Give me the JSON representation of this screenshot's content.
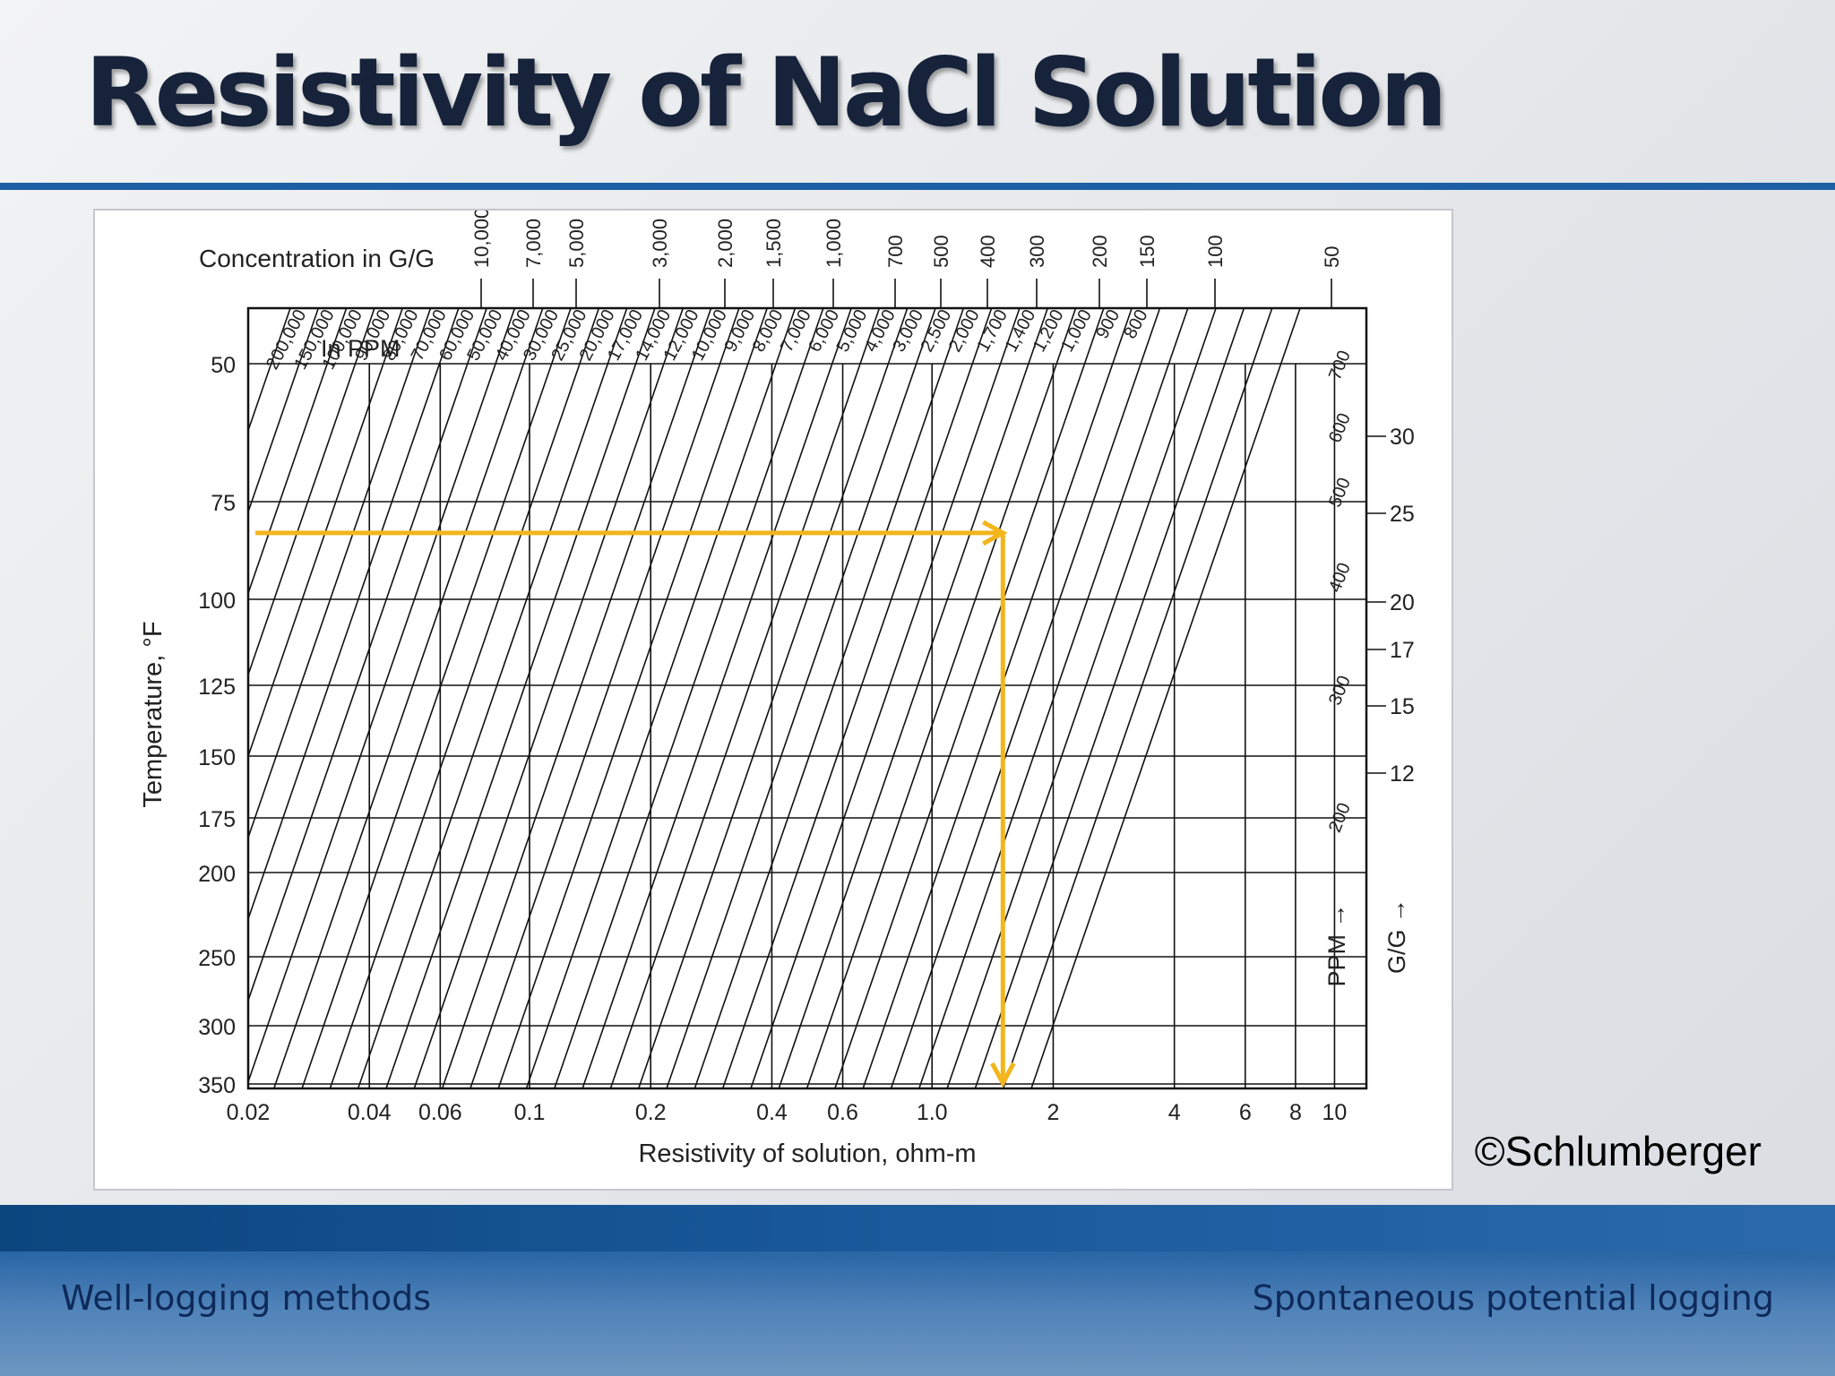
{
  "slide": {
    "title": "Resistivity of NaCl Solution",
    "copyright": "©Schlumberger",
    "footer_left": "Well-logging methods",
    "footer_right": "Spontaneous potential logging"
  },
  "colors": {
    "title_rule": "#1d5fa4",
    "arrow": "#f2b51c"
  },
  "chart_data": {
    "type": "line",
    "title": "",
    "xlabel": "Resistivity of solution, ohm-m",
    "ylabel": "Temperature, °F",
    "x_scale": "log",
    "xlim": [
      0.02,
      12
    ],
    "ylim": [
      45,
      350
    ],
    "grid": true,
    "x_ticks": [
      {
        "value": 0.02,
        "label": "0.02"
      },
      {
        "value": 0.04,
        "label": "0.04"
      },
      {
        "value": 0.06,
        "label": "0.06"
      },
      {
        "value": 0.1,
        "label": "0.1"
      },
      {
        "value": 0.2,
        "label": "0.2"
      },
      {
        "value": 0.4,
        "label": "0.4"
      },
      {
        "value": 0.6,
        "label": "0.6"
      },
      {
        "value": 1.0,
        "label": "1.0"
      },
      {
        "value": 2,
        "label": "2"
      },
      {
        "value": 4,
        "label": "4"
      },
      {
        "value": 6,
        "label": "6"
      },
      {
        "value": 8,
        "label": "8"
      },
      {
        "value": 10,
        "label": "10"
      }
    ],
    "y_ticks": [
      {
        "value": 50,
        "label": "50"
      },
      {
        "value": 75,
        "label": "75"
      },
      {
        "value": 100,
        "label": "100"
      },
      {
        "value": 125,
        "label": "125"
      },
      {
        "value": 150,
        "label": "150"
      },
      {
        "value": 175,
        "label": "175"
      },
      {
        "value": 200,
        "label": "200"
      },
      {
        "value": 250,
        "label": "250"
      },
      {
        "value": 300,
        "label": "300"
      },
      {
        "value": 350,
        "label": "350"
      }
    ],
    "top_axis_title": "Concentration in G/G",
    "top_axis_labels": [
      "10,000",
      "7,000",
      "5,000",
      "3,000",
      "2,000",
      "1,500",
      "1,000",
      "700",
      "500",
      "400",
      "300",
      "200",
      "150",
      "100",
      "50"
    ],
    "ppm_heading": "In PPM",
    "ppm_curves": [
      "200,000",
      "150,000",
      "100,000",
      "90,000",
      "80,000",
      "70,000",
      "60,000",
      "50,000",
      "40,000",
      "30,000",
      "25,000",
      "20,000",
      "17,000",
      "14,000",
      "12,000",
      "10,000",
      "9,000",
      "8,000",
      "7,000",
      "6,000",
      "5,000",
      "4,000",
      "3,000",
      "2,500",
      "2,000",
      "1,700",
      "1,400",
      "1,200",
      "1,000",
      "900",
      "800",
      "700",
      "600",
      "500",
      "400",
      "300",
      "200"
    ],
    "right_ppm_labels": [
      "700",
      "600",
      "500",
      "400",
      "300",
      "200"
    ],
    "right_gg_labels": [
      "30",
      "25",
      "20",
      "17",
      "15",
      "12"
    ],
    "right_ppm_axis_label": "PPM",
    "right_gg_axis_label": "G/G",
    "example_path": {
      "temperature_F": 83,
      "resistivity_ohm_m": 1.5
    }
  }
}
